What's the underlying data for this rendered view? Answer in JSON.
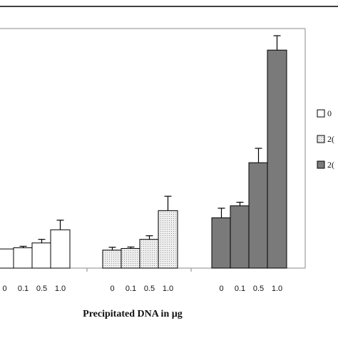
{
  "chart_data": {
    "type": "bar",
    "xlabel": "Precipitated DNA in µg",
    "ylabel": "",
    "title": "",
    "ylim": [
      0,
      100
    ],
    "grid": false,
    "legend_placement": "right",
    "groups": [
      {
        "legend_label": "0",
        "fill": "#ffffff",
        "pattern": "none",
        "categories": [
          "0",
          "0.1",
          "0.5",
          "1.0"
        ],
        "values": [
          8,
          8.5,
          10.5,
          16
        ],
        "errors": [
          0,
          0.6,
          1.5,
          4
        ]
      },
      {
        "legend_label": "2(",
        "fill": "#e6e6e6",
        "pattern": "dots",
        "categories": [
          "0",
          "0.1",
          "0.5",
          "1.0"
        ],
        "values": [
          7.5,
          8.2,
          12,
          24
        ],
        "errors": [
          1.2,
          0.6,
          1.5,
          6
        ]
      },
      {
        "legend_label": "2(",
        "fill": "#7a7a7a",
        "pattern": "none",
        "categories": [
          "0",
          "0.1",
          "0.5",
          "1.0"
        ],
        "values": [
          21,
          26,
          44,
          91
        ],
        "errors": [
          4,
          1.5,
          6,
          6
        ]
      }
    ]
  }
}
